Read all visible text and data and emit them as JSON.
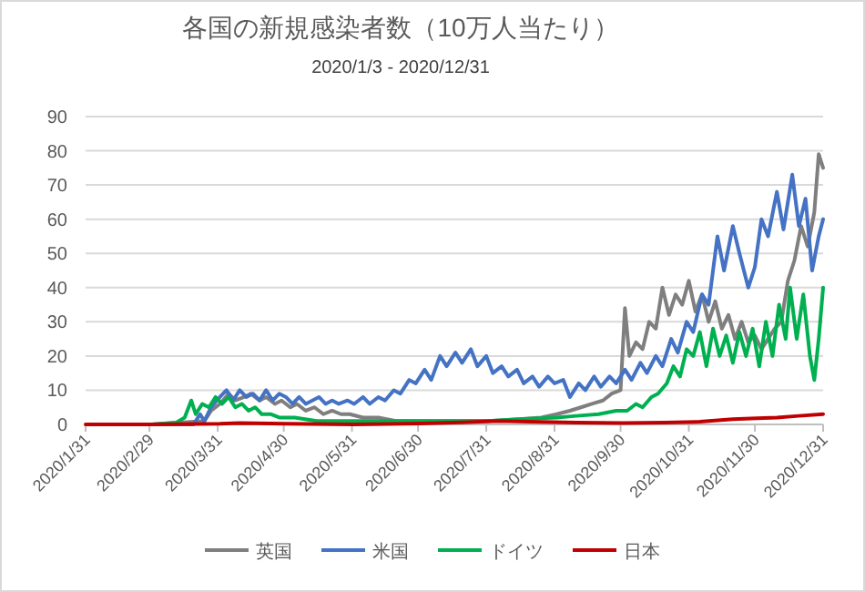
{
  "chart_data": {
    "type": "line",
    "title": "各国の新規感染者数（10万人当たり）",
    "subtitle": "2020/1/3 - 2020/12/31",
    "xlim": [
      "2020-01-31",
      "2020-12-31"
    ],
    "xticks": [
      {
        "value": "2020-01-31",
        "label": "2020/1/31"
      },
      {
        "value": "2020-02-29",
        "label": "2020/2/29"
      },
      {
        "value": "2020-03-31",
        "label": "2020/3/31"
      },
      {
        "value": "2020-04-30",
        "label": "2020/4/30"
      },
      {
        "value": "2020-05-31",
        "label": "2020/5/31"
      },
      {
        "value": "2020-06-30",
        "label": "2020/6/30"
      },
      {
        "value": "2020-07-31",
        "label": "2020/7/31"
      },
      {
        "value": "2020-08-31",
        "label": "2020/8/31"
      },
      {
        "value": "2020-09-30",
        "label": "2020/9/30"
      },
      {
        "value": "2020-10-31",
        "label": "2020/10/31"
      },
      {
        "value": "2020-11-30",
        "label": "2020/11/30"
      },
      {
        "value": "2020-12-31",
        "label": "2020/12/31"
      }
    ],
    "ylim": [
      0,
      90
    ],
    "yticks": [
      0,
      10,
      20,
      30,
      40,
      50,
      60,
      70,
      80,
      90
    ],
    "grid": "y",
    "legend": "bottom",
    "marker": "none",
    "line_style": "solid",
    "series": [
      {
        "name": "英国",
        "color": "#7f7f7f",
        "x": [
          "2020-03-01",
          "2020-03-25",
          "2020-03-28",
          "2020-04-01",
          "2020-04-05",
          "2020-04-08",
          "2020-04-12",
          "2020-04-15",
          "2020-04-19",
          "2020-04-22",
          "2020-04-26",
          "2020-04-29",
          "2020-05-03",
          "2020-05-06",
          "2020-05-10",
          "2020-05-14",
          "2020-05-18",
          "2020-05-22",
          "2020-05-26",
          "2020-05-30",
          "2020-06-05",
          "2020-06-12",
          "2020-06-20",
          "2020-07-01",
          "2020-07-15",
          "2020-08-01",
          "2020-08-15",
          "2020-08-25",
          "2020-09-01",
          "2020-09-07",
          "2020-09-12",
          "2020-09-17",
          "2020-09-22",
          "2020-09-26",
          "2020-09-30",
          "2020-10-02",
          "2020-10-04",
          "2020-10-07",
          "2020-10-10",
          "2020-10-13",
          "2020-10-16",
          "2020-10-19",
          "2020-10-22",
          "2020-10-25",
          "2020-10-28",
          "2020-10-31",
          "2020-11-03",
          "2020-11-06",
          "2020-11-09",
          "2020-11-12",
          "2020-11-15",
          "2020-11-18",
          "2020-11-21",
          "2020-11-24",
          "2020-11-27",
          "2020-11-30",
          "2020-12-03",
          "2020-12-06",
          "2020-12-09",
          "2020-12-12",
          "2020-12-15",
          "2020-12-18",
          "2020-12-21",
          "2020-12-24",
          "2020-12-27",
          "2020-12-29",
          "2020-12-31"
        ],
        "values": [
          0,
          1,
          4,
          6,
          9,
          7,
          8,
          9,
          7,
          8,
          6,
          7,
          5,
          6,
          4,
          5,
          3,
          4,
          3,
          3,
          2,
          2,
          1,
          1,
          1,
          1,
          1.5,
          2,
          3,
          4,
          5,
          6,
          7,
          9,
          10,
          34,
          20,
          24,
          22,
          30,
          28,
          40,
          32,
          38,
          35,
          42,
          33,
          38,
          30,
          36,
          28,
          32,
          25,
          30,
          24,
          26,
          22,
          25,
          28,
          30,
          42,
          48,
          58,
          52,
          62,
          79,
          75
        ]
      },
      {
        "name": "米国",
        "color": "#4472c4",
        "x": [
          "2020-03-01",
          "2020-03-20",
          "2020-03-23",
          "2020-03-25",
          "2020-03-28",
          "2020-04-01",
          "2020-04-04",
          "2020-04-07",
          "2020-04-10",
          "2020-04-13",
          "2020-04-16",
          "2020-04-19",
          "2020-04-22",
          "2020-04-25",
          "2020-04-28",
          "2020-05-01",
          "2020-05-04",
          "2020-05-07",
          "2020-05-10",
          "2020-05-13",
          "2020-05-16",
          "2020-05-19",
          "2020-05-22",
          "2020-05-25",
          "2020-05-29",
          "2020-06-01",
          "2020-06-05",
          "2020-06-08",
          "2020-06-12",
          "2020-06-15",
          "2020-06-19",
          "2020-06-22",
          "2020-06-26",
          "2020-06-29",
          "2020-07-03",
          "2020-07-06",
          "2020-07-10",
          "2020-07-13",
          "2020-07-17",
          "2020-07-20",
          "2020-07-24",
          "2020-07-27",
          "2020-07-31",
          "2020-08-03",
          "2020-08-07",
          "2020-08-10",
          "2020-08-14",
          "2020-08-17",
          "2020-08-21",
          "2020-08-24",
          "2020-08-28",
          "2020-08-31",
          "2020-09-04",
          "2020-09-07",
          "2020-09-11",
          "2020-09-14",
          "2020-09-18",
          "2020-09-21",
          "2020-09-25",
          "2020-09-28",
          "2020-10-02",
          "2020-10-05",
          "2020-10-09",
          "2020-10-12",
          "2020-10-16",
          "2020-10-19",
          "2020-10-23",
          "2020-10-26",
          "2020-10-30",
          "2020-11-02",
          "2020-11-06",
          "2020-11-09",
          "2020-11-13",
          "2020-11-16",
          "2020-11-20",
          "2020-11-23",
          "2020-11-27",
          "2020-11-30",
          "2020-12-03",
          "2020-12-06",
          "2020-12-10",
          "2020-12-13",
          "2020-12-17",
          "2020-12-20",
          "2020-12-23",
          "2020-12-26",
          "2020-12-29",
          "2020-12-31"
        ],
        "values": [
          0,
          0,
          3,
          1,
          5,
          8,
          10,
          7,
          10,
          8,
          9,
          7,
          10,
          7,
          9,
          8,
          6,
          8,
          6,
          7,
          8,
          6,
          7,
          6,
          7,
          6,
          8,
          6,
          8,
          7,
          10,
          9,
          13,
          12,
          16,
          13,
          20,
          17,
          21,
          18,
          22,
          17,
          20,
          15,
          17,
          14,
          16,
          12,
          14,
          11,
          14,
          12,
          13,
          8,
          12,
          10,
          14,
          11,
          14,
          12,
          16,
          13,
          18,
          15,
          20,
          17,
          25,
          21,
          30,
          27,
          38,
          35,
          55,
          45,
          58,
          50,
          40,
          46,
          60,
          55,
          68,
          57,
          73,
          58,
          66,
          45,
          55,
          60
        ]
      },
      {
        "name": "ドイツ",
        "color": "#00b050",
        "x": [
          "2020-03-01",
          "2020-03-12",
          "2020-03-16",
          "2020-03-19",
          "2020-03-21",
          "2020-03-24",
          "2020-03-27",
          "2020-03-30",
          "2020-04-02",
          "2020-04-05",
          "2020-04-08",
          "2020-04-11",
          "2020-04-14",
          "2020-04-17",
          "2020-04-20",
          "2020-04-24",
          "2020-04-28",
          "2020-05-05",
          "2020-05-15",
          "2020-06-01",
          "2020-06-20",
          "2020-07-10",
          "2020-08-01",
          "2020-08-15",
          "2020-09-01",
          "2020-09-10",
          "2020-09-20",
          "2020-09-28",
          "2020-10-03",
          "2020-10-07",
          "2020-10-10",
          "2020-10-14",
          "2020-10-17",
          "2020-10-21",
          "2020-10-24",
          "2020-10-27",
          "2020-10-30",
          "2020-11-02",
          "2020-11-05",
          "2020-11-08",
          "2020-11-11",
          "2020-11-14",
          "2020-11-17",
          "2020-11-20",
          "2020-11-23",
          "2020-11-26",
          "2020-11-29",
          "2020-12-02",
          "2020-12-05",
          "2020-12-08",
          "2020-12-11",
          "2020-12-14",
          "2020-12-16",
          "2020-12-19",
          "2020-12-22",
          "2020-12-25",
          "2020-12-27",
          "2020-12-29",
          "2020-12-31"
        ],
        "values": [
          0,
          0.5,
          2,
          7,
          3,
          6,
          5,
          8,
          6,
          8,
          5,
          6,
          4,
          5,
          3,
          3,
          2,
          2,
          1,
          1,
          1,
          1,
          1,
          1.5,
          2,
          2.5,
          3,
          4,
          4,
          6,
          5,
          8,
          9,
          12,
          17,
          14,
          22,
          20,
          27,
          17,
          28,
          20,
          26,
          18,
          27,
          20,
          28,
          17,
          30,
          20,
          35,
          25,
          40,
          25,
          38,
          20,
          13,
          25,
          40
        ]
      },
      {
        "name": "日本",
        "color": "#c00000",
        "x": [
          "2020-01-31",
          "2020-03-01",
          "2020-04-01",
          "2020-04-10",
          "2020-05-01",
          "2020-06-01",
          "2020-07-01",
          "2020-07-20",
          "2020-08-05",
          "2020-08-20",
          "2020-09-10",
          "2020-10-01",
          "2020-10-20",
          "2020-11-05",
          "2020-11-20",
          "2020-12-01",
          "2020-12-10",
          "2020-12-20",
          "2020-12-31"
        ],
        "values": [
          0,
          0,
          0.2,
          0.4,
          0.2,
          0,
          0.3,
          0.6,
          1,
          0.8,
          0.5,
          0.4,
          0.5,
          0.8,
          1.5,
          1.8,
          2,
          2.5,
          3
        ]
      }
    ]
  }
}
